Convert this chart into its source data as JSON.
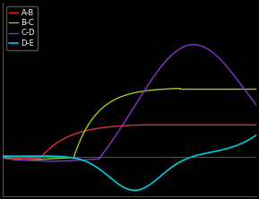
{
  "background_color": "#000000",
  "plot_bg_color": "#000000",
  "grid_color": "#555555",
  "legend_labels": [
    "A-B",
    "B-C",
    "C-D",
    "D-E"
  ],
  "legend_colors": [
    "#dd3333",
    "#99cc22",
    "#8833cc",
    "#00ccdd"
  ],
  "xlim": [
    0,
    10
  ],
  "ylim": [
    -0.22,
    0.85
  ],
  "figsize": [
    2.89,
    2.22
  ],
  "dpi": 100
}
